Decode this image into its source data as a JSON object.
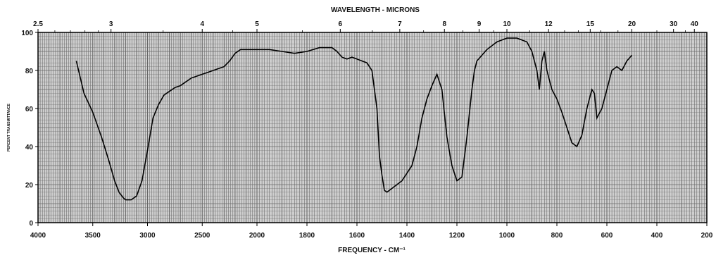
{
  "chart_data": {
    "type": "line",
    "title": "WAVELENGTH - MICRONS",
    "xlabel": "FREQUENCY - CM⁻¹",
    "ylabel": "PERCENT TRANSMITTANCE",
    "x_scale": "piecewise-linear (4000-2000 and 2000-200 cm-1 segments)",
    "xlim": [
      4000,
      200
    ],
    "ylim": [
      0,
      100
    ],
    "x_ticks": [
      4000,
      3500,
      3000,
      2500,
      2000,
      1800,
      1600,
      1400,
      1200,
      1000,
      800,
      600,
      400,
      200
    ],
    "x_tick_labels": [
      "4000",
      "3500",
      "3000",
      "2500",
      "2000",
      "1800",
      "1600",
      "1400",
      "1200",
      "1000",
      "800",
      "600",
      "400",
      "200"
    ],
    "y_ticks": [
      0,
      20,
      40,
      60,
      80,
      100
    ],
    "y_tick_labels": [
      "0",
      "20",
      "40",
      "60",
      "80",
      "100"
    ],
    "top_axis_microns": [
      2.5,
      3,
      4,
      5,
      6,
      7,
      8,
      9,
      10,
      12,
      15,
      20,
      30,
      40
    ],
    "top_axis_labels": [
      "2.5",
      "3",
      "4",
      "5",
      "6",
      "7",
      "8",
      "9",
      "10",
      "12",
      "15",
      "20",
      "30",
      "40"
    ],
    "grid": true,
    "colors": {
      "grid": "#5a5a5a",
      "background": "#cfcfcf",
      "trace": "#000000",
      "text": "#111111"
    },
    "series": [
      {
        "x": [
          3650,
          3580,
          3500,
          3420,
          3350,
          3300,
          3260,
          3220,
          3200,
          3150,
          3100,
          3050,
          3000,
          2950,
          2900,
          2850,
          2800,
          2750,
          2700,
          2650,
          2600,
          2500,
          2450,
          2400,
          2350,
          2300,
          2250,
          2200,
          2150,
          2100,
          2050,
          2000,
          1950,
          1900,
          1850,
          1800,
          1750,
          1700,
          1680,
          1660,
          1640,
          1620,
          1600,
          1580,
          1560,
          1540,
          1520,
          1510,
          1500,
          1490,
          1480,
          1470,
          1460,
          1440,
          1420,
          1400,
          1380,
          1360,
          1340,
          1320,
          1300,
          1280,
          1260,
          1240,
          1220,
          1200,
          1180,
          1160,
          1140,
          1130,
          1120,
          1100,
          1080,
          1060,
          1040,
          1020,
          1000,
          980,
          960,
          940,
          920,
          900,
          880,
          870,
          860,
          850,
          840,
          820,
          800,
          780,
          760,
          740,
          720,
          700,
          680,
          660,
          650,
          640,
          620,
          600,
          580,
          560,
          540,
          520,
          500
        ],
        "y": [
          85,
          68,
          58,
          45,
          32,
          22,
          16,
          13,
          12,
          12,
          14,
          22,
          38,
          55,
          62,
          67,
          69,
          71,
          72,
          74,
          76,
          78,
          79,
          80,
          81,
          82,
          85,
          89,
          91,
          91,
          91,
          91,
          91,
          90,
          89,
          90,
          92,
          92,
          90,
          87,
          86,
          87,
          86,
          85,
          84,
          80,
          60,
          35,
          25,
          17,
          16,
          17,
          18,
          20,
          22,
          26,
          30,
          40,
          55,
          65,
          72,
          78,
          70,
          45,
          30,
          22,
          24,
          45,
          70,
          80,
          85,
          88,
          91,
          93,
          95,
          96,
          97,
          97,
          97,
          96,
          95,
          90,
          80,
          70,
          85,
          90,
          80,
          70,
          65,
          58,
          50,
          42,
          40,
          46,
          60,
          70,
          68,
          55,
          60,
          70,
          80,
          82,
          80,
          85,
          88
        ]
      }
    ]
  }
}
